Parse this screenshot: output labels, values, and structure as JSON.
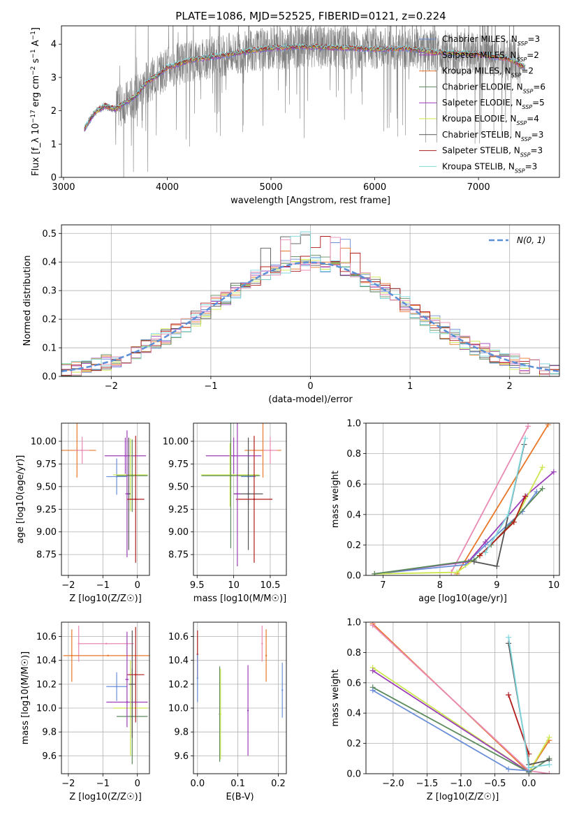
{
  "title": "PLATE=1086, MJD=52525, FIBERID=0121, z=0.224",
  "colors": {
    "Chabrier MILES": "#6a8fd8",
    "Salpeter MILES": "#9b3fb8",
    "Kroupa MILES": "#e8772a",
    "Chabrier ELODIE": "#5b8a5b",
    "Salpeter ELODIE": "#9b3fb8",
    "Kroupa ELODIE": "#cce64f",
    "Chabrier STELIB": "#555555",
    "Salpeter STELIB": "#b01c1c",
    "Kroupa STELIB": "#7fd6dc",
    "extra": "#e88ab2",
    "data": "#808080",
    "normal": "#5b8fd8"
  },
  "chart_data": [
    {
      "type": "line",
      "id": "spectrum",
      "title": "PLATE=1086, MJD=52525, FIBERID=0121, z=0.224",
      "xlabel": "wavelength [Angstrom, rest frame]",
      "ylabel": "Flux [f_λ 10^-17 erg cm^-2 s^-1 A^-1]",
      "xlim": [
        2980,
        7780
      ],
      "ylim": [
        0,
        4.55
      ],
      "xticks": [
        3000,
        4000,
        5000,
        6000,
        7000
      ],
      "yticks": [
        0,
        1,
        2,
        3,
        4
      ],
      "legend": {
        "position": "right",
        "entries": [
          {
            "text": "Chabrier MILES, N_SSP=3",
            "label": "Chabrier MILES, N",
            "sub": "SSP",
            "rest": "=3",
            "color": "#6a8fd8"
          },
          {
            "text": "Salpeter MILES, N_SSP=2",
            "label": "Salpeter MILES, N",
            "sub": "SSP",
            "rest": "=2",
            "color": "#9b3fb8"
          },
          {
            "text": "Kroupa MILES, N_SSP=2",
            "label": "Kroupa MILES, N",
            "sub": "SSP",
            "rest": "=2",
            "color": "#e8772a"
          },
          {
            "text": "Chabrier ELODIE, N_SSP=6",
            "label": "Chabrier ELODIE, N",
            "sub": "SSP",
            "rest": "=6",
            "color": "#5b8a5b"
          },
          {
            "text": "Salpeter ELODIE, N_SSP=5",
            "label": "Salpeter ELODIE, N",
            "sub": "SSP",
            "rest": "=5",
            "color": "#9b3fb8"
          },
          {
            "text": "Kroupa ELODIE, N_SSP=4",
            "label": "Kroupa ELODIE, N",
            "sub": "SSP",
            "rest": "=4",
            "color": "#cce64f"
          },
          {
            "text": "Chabrier STELIB, N_SSP=3",
            "label": "Chabrier STELIB, N",
            "sub": "SSP",
            "rest": "=3",
            "color": "#555555"
          },
          {
            "text": "Salpeter STELIB, N_SSP=3",
            "label": "Salpeter STELIB, N",
            "sub": "SSP",
            "rest": "=3",
            "color": "#b01c1c"
          },
          {
            "text": "Kroupa STELIB, N_SSP=3",
            "label": "Kroupa STELIB, N",
            "sub": "SSP",
            "rest": "=3",
            "color": "#7fd6dc"
          }
        ]
      },
      "continuum": [
        [
          3200,
          1.45
        ],
        [
          3300,
          1.95
        ],
        [
          3400,
          2.15
        ],
        [
          3500,
          2.05
        ],
        [
          3600,
          2.25
        ],
        [
          3700,
          2.45
        ],
        [
          3800,
          2.85
        ],
        [
          3900,
          3.05
        ],
        [
          4000,
          3.3
        ],
        [
          4200,
          3.5
        ],
        [
          4500,
          3.65
        ],
        [
          4800,
          3.8
        ],
        [
          5000,
          3.88
        ],
        [
          5300,
          3.92
        ],
        [
          5600,
          3.9
        ],
        [
          6000,
          3.85
        ],
        [
          6300,
          3.87
        ],
        [
          6600,
          3.75
        ],
        [
          7000,
          3.7
        ],
        [
          7300,
          3.55
        ],
        [
          7450,
          3.3
        ]
      ],
      "data_range": [
        3200,
        7450
      ]
    },
    {
      "type": "histogram",
      "id": "residuals",
      "xlabel": "(data-model)/error",
      "ylabel": "Normed distribution",
      "xlim": [
        -2.5,
        2.5
      ],
      "ylim": [
        0,
        0.53
      ],
      "xticks": [
        -2,
        -1,
        0,
        1,
        2
      ],
      "yticks": [
        0.0,
        0.1,
        0.2,
        0.3,
        0.4,
        0.5
      ],
      "legend": {
        "position": "top-right",
        "label": "N(0, 1)"
      },
      "bin_width": 0.1,
      "reference": "standard normal"
    },
    {
      "type": "scatter",
      "id": "age-vs-Z",
      "xlabel": "Z [log10(Z/Z☉)]",
      "ylabel": "age [log10(age/yr)]",
      "xlim": [
        -2.2,
        0.35
      ],
      "ylim": [
        8.52,
        10.2
      ],
      "xticks": [
        -2,
        -1,
        0
      ],
      "yticks": [
        8.75,
        9.0,
        9.25,
        9.5,
        9.75,
        10.0
      ],
      "points": [
        {
          "x": -1.75,
          "y": 9.9,
          "xerr": 0.55,
          "yerr": 0.3,
          "color": "#e8772a"
        },
        {
          "x": -1.6,
          "y": 9.9,
          "xerr": 0.2,
          "yerr": 0.15,
          "color": "#e88ab2"
        },
        {
          "x": -0.6,
          "y": 9.61,
          "xerr": 0.3,
          "yerr": 0.2,
          "color": "#6a8fd8"
        },
        {
          "x": -0.35,
          "y": 9.84,
          "xerr": 0.6,
          "yerr": 0.2,
          "color": "#9b3fb8"
        },
        {
          "x": -0.2,
          "y": 9.63,
          "xerr": 0.5,
          "yerr": 0.4,
          "color": "#cce64f"
        },
        {
          "x": -0.15,
          "y": 9.62,
          "xerr": 0.45,
          "yerr": 0.4,
          "color": "#5b8a5b"
        },
        {
          "x": -0.25,
          "y": 9.42,
          "xerr": 0.05,
          "yerr": 0.62,
          "color": "#555555"
        },
        {
          "x": -0.05,
          "y": 9.36,
          "xerr": 0.25,
          "yerr": 0.7,
          "color": "#b01c1c"
        },
        {
          "x": -0.3,
          "y": 9.42,
          "xerr": 0.05,
          "yerr": 0.7,
          "color": "#9b3fb8"
        }
      ]
    },
    {
      "type": "scatter",
      "id": "age-vs-mass",
      "xlabel": "mass [log10(M/M☉)]",
      "ylabel": "",
      "xlim": [
        9.45,
        10.72
      ],
      "ylim": [
        8.52,
        10.2
      ],
      "xticks": [
        9.5,
        10.0,
        10.5
      ],
      "yticks": [
        8.75,
        9.0,
        9.25,
        9.5,
        9.75,
        10.0
      ],
      "points": [
        {
          "x": 10.4,
          "y": 9.9,
          "xerr": 0.25,
          "yerr": 0.3,
          "color": "#e8772a"
        },
        {
          "x": 10.5,
          "y": 9.9,
          "xerr": 0.1,
          "yerr": 0.15,
          "color": "#e88ab2"
        },
        {
          "x": 10.0,
          "y": 9.84,
          "xerr": 0.38,
          "yerr": 0.2,
          "color": "#9b3fb8"
        },
        {
          "x": 9.95,
          "y": 9.63,
          "xerr": 0.4,
          "yerr": 0.35,
          "color": "#cce64f"
        },
        {
          "x": 9.96,
          "y": 9.62,
          "xerr": 0.4,
          "yerr": 0.8,
          "color": "#5b8a5b"
        },
        {
          "x": 10.2,
          "y": 9.61,
          "xerr": 0.1,
          "yerr": 0.3,
          "color": "#6a8fd8"
        },
        {
          "x": 10.2,
          "y": 9.42,
          "xerr": 0.2,
          "yerr": 0.62,
          "color": "#555555"
        },
        {
          "x": 10.28,
          "y": 9.36,
          "xerr": 0.25,
          "yerr": 0.7,
          "color": "#b01c1c"
        },
        {
          "x": 10.05,
          "y": 9.42,
          "xerr": 0.05,
          "yerr": 0.8,
          "color": "#9b3fb8"
        }
      ]
    },
    {
      "type": "line",
      "id": "mass-weight-vs-age",
      "xlabel": "age [log10(age/yr)]",
      "ylabel": "mass weight",
      "xlim": [
        6.7,
        10.1
      ],
      "ylim": [
        0,
        1
      ],
      "xticks": [
        7,
        8,
        9,
        10
      ],
      "yticks": [
        0.0,
        0.2,
        0.4,
        0.6,
        0.8,
        1.0
      ],
      "series": [
        {
          "color": "#e8772a",
          "x": [
            8.3,
            9.9
          ],
          "y": [
            0.01,
            0.99
          ]
        },
        {
          "color": "#e88ab2",
          "x": [
            8.2,
            9.55
          ],
          "y": [
            0.02,
            0.98
          ]
        },
        {
          "color": "#6a8fd8",
          "x": [
            6.85,
            8.45,
            8.8,
            9.45,
            9.7
          ],
          "y": [
            0.01,
            0.07,
            0.2,
            0.42,
            0.55
          ]
        },
        {
          "color": "#9b3fb8",
          "x": [
            6.85,
            8.5,
            8.8,
            9.5,
            10.0
          ],
          "y": [
            0.01,
            0.09,
            0.22,
            0.52,
            0.68
          ]
        },
        {
          "color": "#cce64f",
          "x": [
            6.85,
            8.3,
            8.7,
            9.3,
            9.8
          ],
          "y": [
            0.01,
            0.02,
            0.13,
            0.35,
            0.71
          ]
        },
        {
          "color": "#5b8a5b",
          "x": [
            6.85,
            8.6,
            8.9,
            9.8
          ],
          "y": [
            0.01,
            0.1,
            0.2,
            0.57
          ]
        },
        {
          "color": "#555555",
          "x": [
            8.6,
            9.0,
            9.48
          ],
          "y": [
            0.09,
            0.06,
            0.86
          ]
        },
        {
          "color": "#b01c1c",
          "x": [
            8.7,
            9.3,
            9.5
          ],
          "y": [
            0.13,
            0.35,
            0.52
          ]
        },
        {
          "color": "#7fd6dc",
          "x": [
            8.8,
            9.2,
            9.5
          ],
          "y": [
            0.15,
            0.4,
            0.9
          ]
        }
      ]
    },
    {
      "type": "scatter",
      "id": "mass-vs-Z",
      "xlabel": "Z [log10(Z/Z☉)]",
      "ylabel": "mass [log10(M/M☉)]",
      "xlim": [
        -2.2,
        0.35
      ],
      "ylim": [
        9.45,
        10.72
      ],
      "xticks": [
        -2,
        -1,
        0
      ],
      "yticks": [
        9.6,
        9.8,
        10.0,
        10.2,
        10.4,
        10.6
      ],
      "points": [
        {
          "x": -1.9,
          "y": 10.44,
          "xerr": 0.0,
          "yerr": 0.22,
          "color": "#e8772a"
        },
        {
          "x": -1.7,
          "y": 10.54,
          "xerr": 0.0,
          "yerr": 0.15,
          "color": "#e88ab2"
        },
        {
          "x": -0.85,
          "y": 10.44,
          "xerr": 1.3,
          "yerr": 0.0,
          "color": "#e8772a"
        },
        {
          "x": -0.9,
          "y": 10.54,
          "xerr": 0.8,
          "yerr": 0.0,
          "color": "#e88ab2"
        },
        {
          "x": -0.6,
          "y": 10.18,
          "xerr": 0.3,
          "yerr": 0.12,
          "color": "#6a8fd8"
        },
        {
          "x": -0.3,
          "y": 10.05,
          "xerr": 0.6,
          "yerr": 0.0,
          "color": "#9b3fb8"
        },
        {
          "x": -0.2,
          "y": 10.0,
          "xerr": 0.5,
          "yerr": 0.4,
          "color": "#cce64f"
        },
        {
          "x": -0.15,
          "y": 9.93,
          "xerr": 0.45,
          "yerr": 0.4,
          "color": "#5b8a5b"
        },
        {
          "x": -0.15,
          "y": 10.2,
          "xerr": 0.1,
          "yerr": 0.45,
          "color": "#555555"
        },
        {
          "x": -0.05,
          "y": 10.28,
          "xerr": 0.25,
          "yerr": 0.4,
          "color": "#b01c1c"
        },
        {
          "x": -0.3,
          "y": 10.24,
          "xerr": 0.05,
          "yerr": 0.4,
          "color": "#9b3fb8"
        }
      ]
    },
    {
      "type": "scatter",
      "id": "mass-vs-ebv",
      "xlabel": "E(B-V)",
      "ylabel": "",
      "xlim": [
        -0.01,
        0.22
      ],
      "ylim": [
        9.45,
        10.72
      ],
      "xticks": [
        0.0,
        0.1,
        0.2
      ],
      "yticks": [
        9.6,
        9.8,
        10.0,
        10.2,
        10.4,
        10.6
      ],
      "points": [
        {
          "x": 0.0,
          "y": 10.45,
          "xerr": 0,
          "yerr": 0.2,
          "color": "#b01c1c"
        },
        {
          "x": 0.0,
          "y": 10.25,
          "xerr": 0,
          "yerr": 0.2,
          "color": "#6a8fd8"
        },
        {
          "x": 0.055,
          "y": 9.95,
          "xerr": 0,
          "yerr": 0.4,
          "color": "#5b8a5b"
        },
        {
          "x": 0.057,
          "y": 9.95,
          "xerr": 0,
          "yerr": 0.38,
          "color": "#cce64f"
        },
        {
          "x": 0.125,
          "y": 9.98,
          "xerr": 0,
          "yerr": 0.38,
          "color": "#9b3fb8"
        },
        {
          "x": 0.16,
          "y": 10.54,
          "xerr": 0,
          "yerr": 0.15,
          "color": "#e88ab2"
        },
        {
          "x": 0.17,
          "y": 10.44,
          "xerr": 0,
          "yerr": 0.22,
          "color": "#e8772a"
        },
        {
          "x": 0.21,
          "y": 10.15,
          "xerr": 0,
          "yerr": 0.23,
          "color": "#6a8fd8"
        }
      ]
    },
    {
      "type": "line",
      "id": "mass-weight-vs-Z",
      "xlabel": "Z [log10(Z/Z☉)]",
      "ylabel": "mass weight",
      "xlim": [
        -2.4,
        0.45
      ],
      "ylim": [
        0,
        1
      ],
      "xticks": [
        -2.0,
        -1.5,
        -1.0,
        -0.5,
        0.0
      ],
      "xticklabels": [
        "−2.0",
        "−1.5",
        "−1.0",
        "−0.5",
        "0.0"
      ],
      "yticks": [
        0.0,
        0.2,
        0.4,
        0.6,
        0.8,
        1.0
      ],
      "series": [
        {
          "color": "#e8772a",
          "x": [
            -2.3,
            0.0,
            0.3
          ],
          "y": [
            0.99,
            0.01,
            0.22
          ]
        },
        {
          "color": "#e88ab2",
          "x": [
            -2.3,
            0.0,
            0.3
          ],
          "y": [
            0.98,
            0.02,
            0.0
          ]
        },
        {
          "color": "#cce64f",
          "x": [
            -2.3,
            0.0,
            0.3
          ],
          "y": [
            0.7,
            0.01,
            0.24
          ]
        },
        {
          "color": "#9b3fb8",
          "x": [
            -2.3,
            0.0
          ],
          "y": [
            0.68,
            0.01
          ]
        },
        {
          "color": "#5b8a5b",
          "x": [
            -2.3,
            0.0,
            0.3
          ],
          "y": [
            0.57,
            0.01,
            0.1
          ]
        },
        {
          "color": "#6a8fd8",
          "x": [
            -2.3,
            -0.3,
            0.0
          ],
          "y": [
            0.55,
            0.03,
            0.02
          ]
        },
        {
          "color": "#555555",
          "x": [
            -0.3,
            0.0,
            0.3
          ],
          "y": [
            0.86,
            0.06,
            0.09
          ]
        },
        {
          "color": "#b01c1c",
          "x": [
            -0.3,
            0.0
          ],
          "y": [
            0.52,
            0.13
          ]
        },
        {
          "color": "#7fd6dc",
          "x": [
            -0.3,
            0.0,
            0.3
          ],
          "y": [
            0.9,
            0.04,
            0.06
          ]
        }
      ]
    }
  ]
}
